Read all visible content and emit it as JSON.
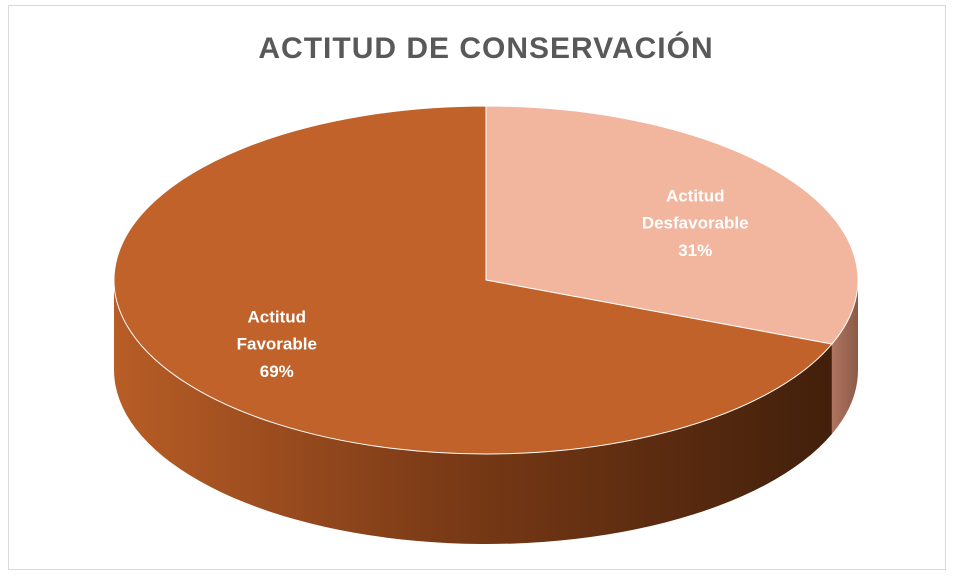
{
  "chart_data": {
    "type": "pie",
    "title": "ACTITUD DE CONSERVACIÓN",
    "categories": [
      "Actitud Desfavorable",
      "Actitud Favorable"
    ],
    "values": [
      31,
      69
    ],
    "value_labels": [
      "31%",
      "69%"
    ],
    "colors": [
      "#f2b59e",
      "#c0622a"
    ]
  }
}
